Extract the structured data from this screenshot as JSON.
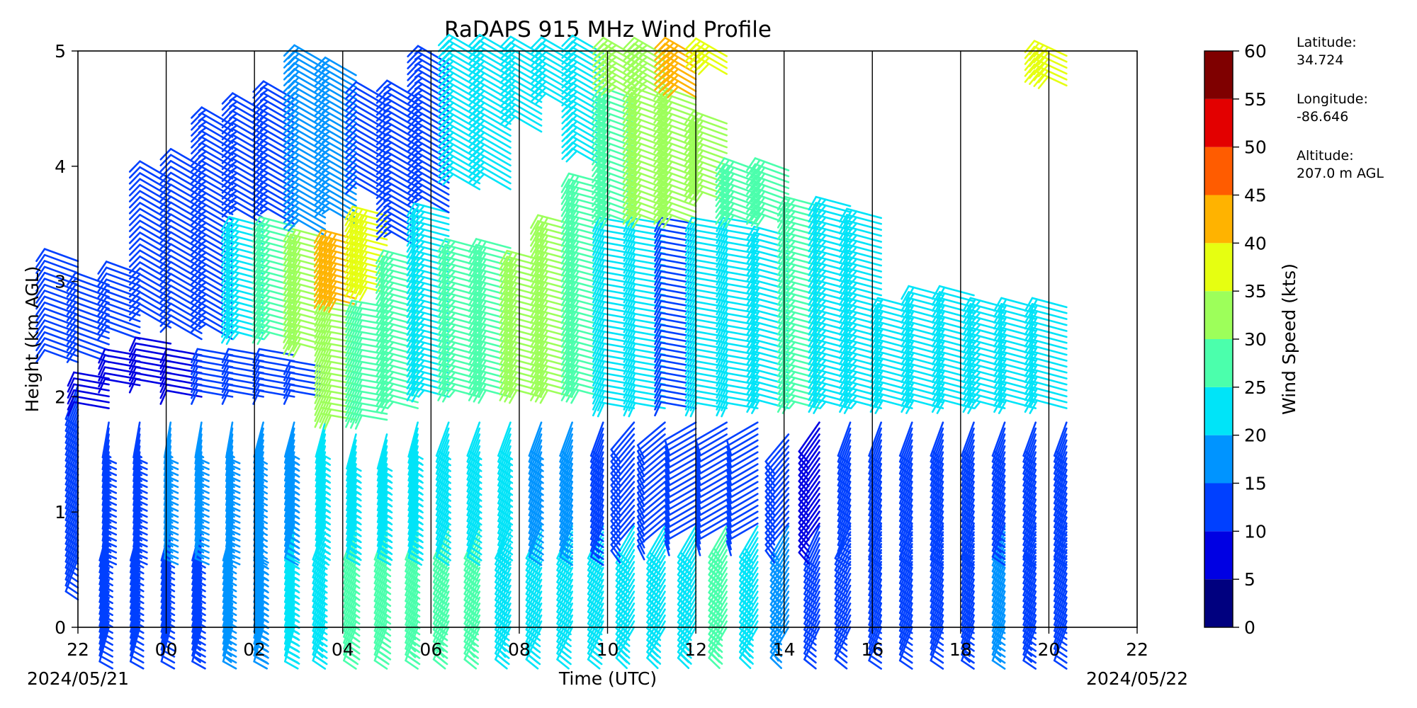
{
  "chart_data": {
    "type": "wind-barb-profile",
    "title": "RaDAPS 915 MHz Wind Profile",
    "xlabel": "Time (UTC)",
    "ylabel": "Height (km AGL)",
    "x_tick_labels": [
      "22",
      "00",
      "02",
      "04",
      "06",
      "08",
      "10",
      "12",
      "14",
      "16",
      "18",
      "20",
      "22"
    ],
    "x_range_hours_since_start": [
      0,
      24
    ],
    "y_ticks": [
      0,
      1,
      2,
      3,
      4,
      5
    ],
    "ylim": [
      0,
      5
    ],
    "start_date": "2024/05/21",
    "end_date": "2024/05/22",
    "grid": "vertical lines every 2 hours",
    "colorbar": {
      "label": "Wind Speed (kts)",
      "ticks": [
        0,
        5,
        10,
        15,
        20,
        25,
        30,
        35,
        40,
        45,
        50,
        55,
        60
      ],
      "colors": [
        "#00007f",
        "#0000e3",
        "#0040ff",
        "#0094ff",
        "#00e4f8",
        "#4bffac",
        "#9dff5a",
        "#e6ff11",
        "#ffb300",
        "#ff5c00",
        "#e30000",
        "#7f0000"
      ]
    },
    "profiles": [
      {
        "time": "22:00",
        "segments": [
          {
            "h0": 0.6,
            "h1": 2.1,
            "spd": 12,
            "dir": 200
          },
          {
            "h0": 2.3,
            "h1": 3.2,
            "spd": 10,
            "dir": 290
          }
        ]
      },
      {
        "time": "22:42",
        "segments": [
          {
            "h0": 0.0,
            "h1": 0.9,
            "spd": 10,
            "dir": 195
          },
          {
            "h0": 0.9,
            "h1": 1.8,
            "spd": 14,
            "dir": 190
          },
          {
            "h0": 1.9,
            "h1": 2.2,
            "spd": 8,
            "dir": 280
          },
          {
            "h0": 2.3,
            "h1": 3.0,
            "spd": 10,
            "dir": 290
          }
        ]
      },
      {
        "time": "23:24",
        "segments": [
          {
            "h0": 0.0,
            "h1": 0.9,
            "spd": 10,
            "dir": 195
          },
          {
            "h0": 0.9,
            "h1": 1.8,
            "spd": 14,
            "dir": 190
          },
          {
            "h0": 2.1,
            "h1": 2.4,
            "spd": 8,
            "dir": 280
          },
          {
            "h0": 2.5,
            "h1": 3.1,
            "spd": 10,
            "dir": 290
          }
        ]
      },
      {
        "time": "00:06",
        "segments": [
          {
            "h0": 0.0,
            "h1": 0.9,
            "spd": 12,
            "dir": 195
          },
          {
            "h0": 0.9,
            "h1": 1.8,
            "spd": 16,
            "dir": 190
          },
          {
            "h0": 2.1,
            "h1": 2.5,
            "spd": 8,
            "dir": 280
          },
          {
            "h0": 2.6,
            "h1": 3.9,
            "spd": 12,
            "dir": 300
          }
        ]
      },
      {
        "time": "00:48",
        "segments": [
          {
            "h0": 0.0,
            "h1": 0.9,
            "spd": 14,
            "dir": 195
          },
          {
            "h0": 0.9,
            "h1": 1.8,
            "spd": 16,
            "dir": 190
          },
          {
            "h0": 2.0,
            "h1": 2.4,
            "spd": 9,
            "dir": 280
          },
          {
            "h0": 2.5,
            "h1": 4.0,
            "spd": 12,
            "dir": 300
          }
        ]
      },
      {
        "time": "01:30",
        "segments": [
          {
            "h0": 0.0,
            "h1": 0.9,
            "spd": 16,
            "dir": 195
          },
          {
            "h0": 0.9,
            "h1": 1.8,
            "spd": 17,
            "dir": 190
          },
          {
            "h0": 2.0,
            "h1": 2.4,
            "spd": 10,
            "dir": 280
          },
          {
            "h0": 2.5,
            "h1": 4.4,
            "spd": 13,
            "dir": 300
          }
        ]
      },
      {
        "time": "02:12",
        "segments": [
          {
            "h0": 0.0,
            "h1": 0.9,
            "spd": 18,
            "dir": 195
          },
          {
            "h0": 0.9,
            "h1": 1.8,
            "spd": 17,
            "dir": 195
          },
          {
            "h0": 2.0,
            "h1": 2.4,
            "spd": 10,
            "dir": 280
          },
          {
            "h0": 2.5,
            "h1": 3.5,
            "spd": 24,
            "dir": 285
          },
          {
            "h0": 3.5,
            "h1": 4.5,
            "spd": 14,
            "dir": 300
          }
        ]
      },
      {
        "time": "02:54",
        "segments": [
          {
            "h0": 0.0,
            "h1": 0.9,
            "spd": 20,
            "dir": 195
          },
          {
            "h0": 0.9,
            "h1": 1.8,
            "spd": 18,
            "dir": 195
          },
          {
            "h0": 2.0,
            "h1": 2.4,
            "spd": 10,
            "dir": 280
          },
          {
            "h0": 2.5,
            "h1": 3.5,
            "spd": 26,
            "dir": 285
          },
          {
            "h0": 3.5,
            "h1": 4.6,
            "spd": 14,
            "dir": 300
          }
        ]
      },
      {
        "time": "03:36",
        "segments": [
          {
            "h0": 0.0,
            "h1": 0.9,
            "spd": 24,
            "dir": 200
          },
          {
            "h0": 0.9,
            "h1": 1.8,
            "spd": 20,
            "dir": 195
          },
          {
            "h0": 2.0,
            "h1": 2.3,
            "spd": 10,
            "dir": 280
          },
          {
            "h0": 2.4,
            "h1": 3.4,
            "spd": 32,
            "dir": 285
          },
          {
            "h0": 3.4,
            "h1": 4.9,
            "spd": 18,
            "dir": 300
          }
        ]
      },
      {
        "time": "04:18",
        "segments": [
          {
            "h0": 0.0,
            "h1": 0.9,
            "spd": 28,
            "dir": 200
          },
          {
            "h0": 0.9,
            "h1": 1.7,
            "spd": 24,
            "dir": 195
          },
          {
            "h0": 1.8,
            "h1": 2.8,
            "spd": 30,
            "dir": 280
          },
          {
            "h0": 2.8,
            "h1": 3.4,
            "spd": 40,
            "dir": 285
          },
          {
            "h0": 3.5,
            "h1": 4.8,
            "spd": 16,
            "dir": 300
          }
        ]
      },
      {
        "time": "05:00",
        "segments": [
          {
            "h0": 0.0,
            "h1": 0.9,
            "spd": 28,
            "dir": 200
          },
          {
            "h0": 0.9,
            "h1": 1.7,
            "spd": 24,
            "dir": 195
          },
          {
            "h0": 1.8,
            "h1": 2.8,
            "spd": 28,
            "dir": 280
          },
          {
            "h0": 2.9,
            "h1": 3.6,
            "spd": 38,
            "dir": 285
          },
          {
            "h0": 3.7,
            "h1": 4.6,
            "spd": 12,
            "dir": 300
          }
        ]
      },
      {
        "time": "05:42",
        "segments": [
          {
            "h0": 0.0,
            "h1": 0.9,
            "spd": 26,
            "dir": 200
          },
          {
            "h0": 0.9,
            "h1": 1.8,
            "spd": 24,
            "dir": 195
          },
          {
            "h0": 1.9,
            "h1": 3.2,
            "spd": 26,
            "dir": 285
          },
          {
            "h0": 3.3,
            "h1": 4.6,
            "spd": 14,
            "dir": 300
          }
        ]
      },
      {
        "time": "06:24",
        "segments": [
          {
            "h0": 0.0,
            "h1": 0.9,
            "spd": 26,
            "dir": 205
          },
          {
            "h0": 0.9,
            "h1": 1.8,
            "spd": 20,
            "dir": 200
          },
          {
            "h0": 2.0,
            "h1": 3.6,
            "spd": 24,
            "dir": 285
          },
          {
            "h0": 3.6,
            "h1": 4.9,
            "spd": 14,
            "dir": 300
          }
        ]
      },
      {
        "time": "07:06",
        "segments": [
          {
            "h0": 0.0,
            "h1": 0.9,
            "spd": 26,
            "dir": 205
          },
          {
            "h0": 0.9,
            "h1": 1.8,
            "spd": 20,
            "dir": 200
          },
          {
            "h0": 2.0,
            "h1": 3.3,
            "spd": 26,
            "dir": 285
          },
          {
            "h0": 3.8,
            "h1": 5.0,
            "spd": 20,
            "dir": 300
          }
        ]
      },
      {
        "time": "07:48",
        "segments": [
          {
            "h0": 0.0,
            "h1": 0.9,
            "spd": 24,
            "dir": 205
          },
          {
            "h0": 0.9,
            "h1": 1.8,
            "spd": 20,
            "dir": 200
          },
          {
            "h0": 2.0,
            "h1": 3.3,
            "spd": 28,
            "dir": 285
          },
          {
            "h0": 3.8,
            "h1": 5.0,
            "spd": 20,
            "dir": 300
          }
        ]
      },
      {
        "time": "08:30",
        "segments": [
          {
            "h0": 0.0,
            "h1": 0.9,
            "spd": 22,
            "dir": 205
          },
          {
            "h0": 0.9,
            "h1": 1.8,
            "spd": 18,
            "dir": 200
          },
          {
            "h0": 2.0,
            "h1": 3.2,
            "spd": 30,
            "dir": 285
          },
          {
            "h0": 4.3,
            "h1": 5.0,
            "spd": 20,
            "dir": 300
          }
        ]
      },
      {
        "time": "09:12",
        "segments": [
          {
            "h0": 0.0,
            "h1": 0.9,
            "spd": 22,
            "dir": 205
          },
          {
            "h0": 0.9,
            "h1": 1.8,
            "spd": 16,
            "dir": 200
          },
          {
            "h0": 2.0,
            "h1": 3.5,
            "spd": 30,
            "dir": 285
          },
          {
            "h0": 4.5,
            "h1": 5.0,
            "spd": 20,
            "dir": 300
          }
        ]
      },
      {
        "time": "09:54",
        "segments": [
          {
            "h0": 0.0,
            "h1": 0.9,
            "spd": 22,
            "dir": 205
          },
          {
            "h0": 0.9,
            "h1": 1.8,
            "spd": 14,
            "dir": 200
          },
          {
            "h0": 2.0,
            "h1": 3.9,
            "spd": 28,
            "dir": 285
          },
          {
            "h0": 4.0,
            "h1": 5.0,
            "spd": 20,
            "dir": 300
          }
        ]
      },
      {
        "time": "10:36",
        "segments": [
          {
            "h0": 0.0,
            "h1": 0.9,
            "spd": 22,
            "dir": 210
          },
          {
            "h0": 0.9,
            "h1": 1.8,
            "spd": 12,
            "dir": 220
          },
          {
            "h0": 1.9,
            "h1": 3.5,
            "spd": 20,
            "dir": 280
          },
          {
            "h0": 3.5,
            "h1": 4.6,
            "spd": 28,
            "dir": 290
          },
          {
            "h0": 4.6,
            "h1": 5.0,
            "spd": 34,
            "dir": 300
          }
        ]
      },
      {
        "time": "11:18",
        "segments": [
          {
            "h0": 0.0,
            "h1": 0.9,
            "spd": 22,
            "dir": 210
          },
          {
            "h0": 0.9,
            "h1": 1.8,
            "spd": 12,
            "dir": 230
          },
          {
            "h0": 1.9,
            "h1": 3.5,
            "spd": 20,
            "dir": 280
          },
          {
            "h0": 3.5,
            "h1": 4.6,
            "spd": 30,
            "dir": 290
          },
          {
            "h0": 4.6,
            "h1": 5.0,
            "spd": 34,
            "dir": 300
          }
        ]
      },
      {
        "time": "12:00",
        "segments": [
          {
            "h0": 0.0,
            "h1": 0.9,
            "spd": 20,
            "dir": 210
          },
          {
            "h0": 0.9,
            "h1": 1.8,
            "spd": 12,
            "dir": 240
          },
          {
            "h0": 1.9,
            "h1": 3.5,
            "spd": 12,
            "dir": 280
          },
          {
            "h0": 3.5,
            "h1": 4.6,
            "spd": 30,
            "dir": 290
          },
          {
            "h0": 4.6,
            "h1": 5.0,
            "spd": 42,
            "dir": 300
          }
        ]
      },
      {
        "time": "12:42",
        "segments": [
          {
            "h0": 0.0,
            "h1": 0.9,
            "spd": 26,
            "dir": 210
          },
          {
            "h0": 0.9,
            "h1": 1.8,
            "spd": 12,
            "dir": 240
          },
          {
            "h0": 1.9,
            "h1": 3.5,
            "spd": 20,
            "dir": 280
          },
          {
            "h0": 3.7,
            "h1": 4.4,
            "spd": 30,
            "dir": 290
          },
          {
            "h0": 4.8,
            "h1": 5.0,
            "spd": 38,
            "dir": 300
          }
        ]
      },
      {
        "time": "13:24",
        "segments": [
          {
            "h0": 0.0,
            "h1": 0.9,
            "spd": 24,
            "dir": 210
          },
          {
            "h0": 0.9,
            "h1": 1.8,
            "spd": 12,
            "dir": 240
          },
          {
            "h0": 1.9,
            "h1": 3.5,
            "spd": 22,
            "dir": 280
          },
          {
            "h0": 3.5,
            "h1": 4.0,
            "spd": 28,
            "dir": 290
          }
        ]
      },
      {
        "time": "14:06",
        "segments": [
          {
            "h0": 0.0,
            "h1": 0.9,
            "spd": 16,
            "dir": 210
          },
          {
            "h0": 0.9,
            "h1": 1.7,
            "spd": 12,
            "dir": 220
          },
          {
            "h0": 1.9,
            "h1": 3.4,
            "spd": 20,
            "dir": 285
          },
          {
            "h0": 3.5,
            "h1": 4.0,
            "spd": 28,
            "dir": 290
          }
        ]
      },
      {
        "time": "14:48",
        "segments": [
          {
            "h0": 0.0,
            "h1": 0.9,
            "spd": 10,
            "dir": 205
          },
          {
            "h0": 0.9,
            "h1": 1.8,
            "spd": 8,
            "dir": 215
          },
          {
            "h0": 1.9,
            "h1": 3.7,
            "spd": 26,
            "dir": 285
          }
        ]
      },
      {
        "time": "15:30",
        "segments": [
          {
            "h0": 0.0,
            "h1": 0.9,
            "spd": 10,
            "dir": 205
          },
          {
            "h0": 0.9,
            "h1": 1.8,
            "spd": 10,
            "dir": 200
          },
          {
            "h0": 1.9,
            "h1": 3.7,
            "spd": 24,
            "dir": 285
          }
        ]
      },
      {
        "time": "16:12",
        "segments": [
          {
            "h0": 0.0,
            "h1": 0.9,
            "spd": 10,
            "dir": 200
          },
          {
            "h0": 0.9,
            "h1": 1.8,
            "spd": 10,
            "dir": 200
          },
          {
            "h0": 1.9,
            "h1": 3.6,
            "spd": 24,
            "dir": 285
          }
        ]
      },
      {
        "time": "16:54",
        "segments": [
          {
            "h0": 0.0,
            "h1": 0.9,
            "spd": 10,
            "dir": 200
          },
          {
            "h0": 0.9,
            "h1": 1.8,
            "spd": 12,
            "dir": 200
          },
          {
            "h0": 1.9,
            "h1": 2.8,
            "spd": 22,
            "dir": 285
          }
        ]
      },
      {
        "time": "17:36",
        "segments": [
          {
            "h0": 0.0,
            "h1": 0.9,
            "spd": 12,
            "dir": 200
          },
          {
            "h0": 0.9,
            "h1": 1.8,
            "spd": 14,
            "dir": 200
          },
          {
            "h0": 1.9,
            "h1": 2.9,
            "spd": 22,
            "dir": 285
          }
        ]
      },
      {
        "time": "18:18",
        "segments": [
          {
            "h0": 0.0,
            "h1": 0.9,
            "spd": 14,
            "dir": 200
          },
          {
            "h0": 0.9,
            "h1": 1.8,
            "spd": 14,
            "dir": 200
          },
          {
            "h0": 1.9,
            "h1": 2.9,
            "spd": 22,
            "dir": 285
          }
        ]
      },
      {
        "time": "19:00",
        "segments": [
          {
            "h0": 0.0,
            "h1": 0.9,
            "spd": 16,
            "dir": 200
          },
          {
            "h0": 0.9,
            "h1": 1.8,
            "spd": 14,
            "dir": 200
          },
          {
            "h0": 1.9,
            "h1": 2.8,
            "spd": 24,
            "dir": 285
          }
        ]
      },
      {
        "time": "19:42",
        "segments": [
          {
            "h0": 0.0,
            "h1": 0.9,
            "spd": 14,
            "dir": 200
          },
          {
            "h0": 0.9,
            "h1": 1.8,
            "spd": 14,
            "dir": 200
          },
          {
            "h0": 1.9,
            "h1": 2.8,
            "spd": 22,
            "dir": 285
          }
        ]
      },
      {
        "time": "20:24",
        "segments": [
          {
            "h0": 0.0,
            "h1": 0.9,
            "spd": 12,
            "dir": 200
          },
          {
            "h0": 0.9,
            "h1": 1.8,
            "spd": 14,
            "dir": 200
          },
          {
            "h0": 1.9,
            "h1": 2.8,
            "spd": 22,
            "dir": 285
          },
          {
            "h0": 4.7,
            "h1": 5.0,
            "spd": 38,
            "dir": 295
          }
        ]
      }
    ]
  },
  "info": {
    "latitude_label": "Latitude:",
    "latitude_value": "34.724",
    "longitude_label": "Longitude:",
    "longitude_value": "-86.646",
    "altitude_label": "Altitude:",
    "altitude_value": "207.0 m AGL"
  }
}
